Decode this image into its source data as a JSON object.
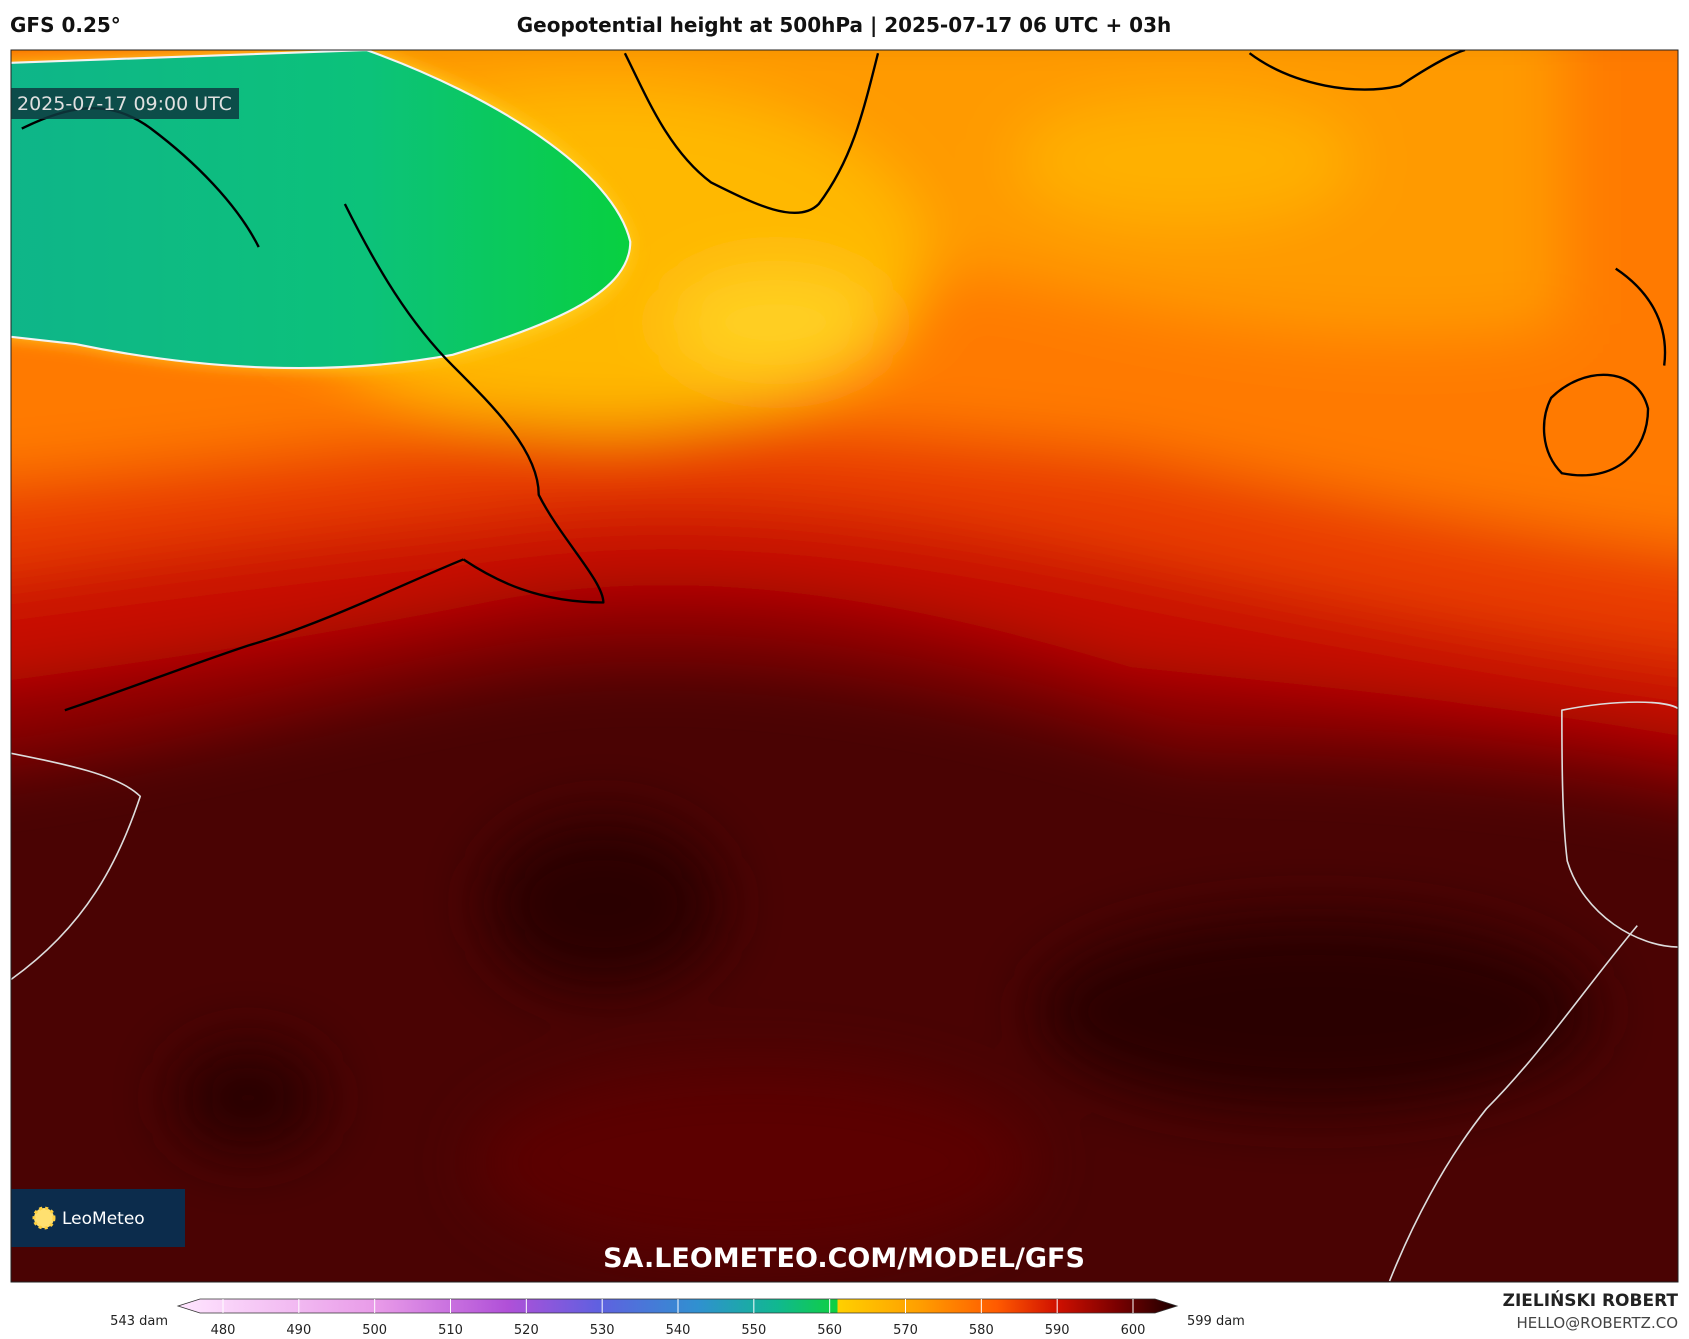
{
  "header": {
    "model": "GFS 0.25°",
    "title": "Geopotential height at 500hPa | 2025-07-17 06 UTC + 03h"
  },
  "map": {
    "timestamp": "2025-07-17 09:00 UTC",
    "watermark": "SA.LEOMETEO.COM/MODEL/GFS",
    "logo": "LeoMeteo"
  },
  "colorbar": {
    "min_label": "543 dam",
    "max_label": "599 dam",
    "ticks": [
      480,
      490,
      500,
      510,
      520,
      530,
      540,
      550,
      560,
      570,
      580,
      590,
      600
    ]
  },
  "credit": {
    "name": "ZIELIŃSKI ROBERT",
    "email": "HELLO@ROBERTZ.CO"
  }
}
